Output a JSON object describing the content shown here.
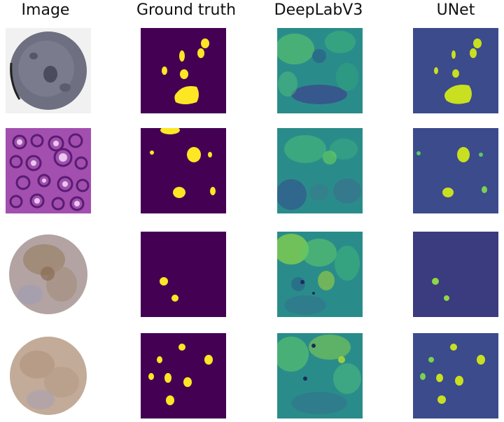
{
  "columns": [
    {
      "id": "image",
      "title": "Image"
    },
    {
      "id": "ground_truth",
      "title": "Ground truth"
    },
    {
      "id": "deeplabv3",
      "title": "DeepLabV3"
    },
    {
      "id": "unet",
      "title": "UNet"
    }
  ],
  "colors": {
    "mask_background": "#440154",
    "mask_foreground": "#fde725",
    "unet_background": "#3b4b8c",
    "unet_foreground": "#c8e020",
    "deeplab_base": "#2a8c8a"
  },
  "rows": [
    {
      "image_stain": "grey-tissue-core"
    },
    {
      "image_stain": "purple-pas-tissue"
    },
    {
      "image_stain": "brown-ihc-tissue-core"
    },
    {
      "image_stain": "brown-ihc-tissue-core"
    }
  ]
}
